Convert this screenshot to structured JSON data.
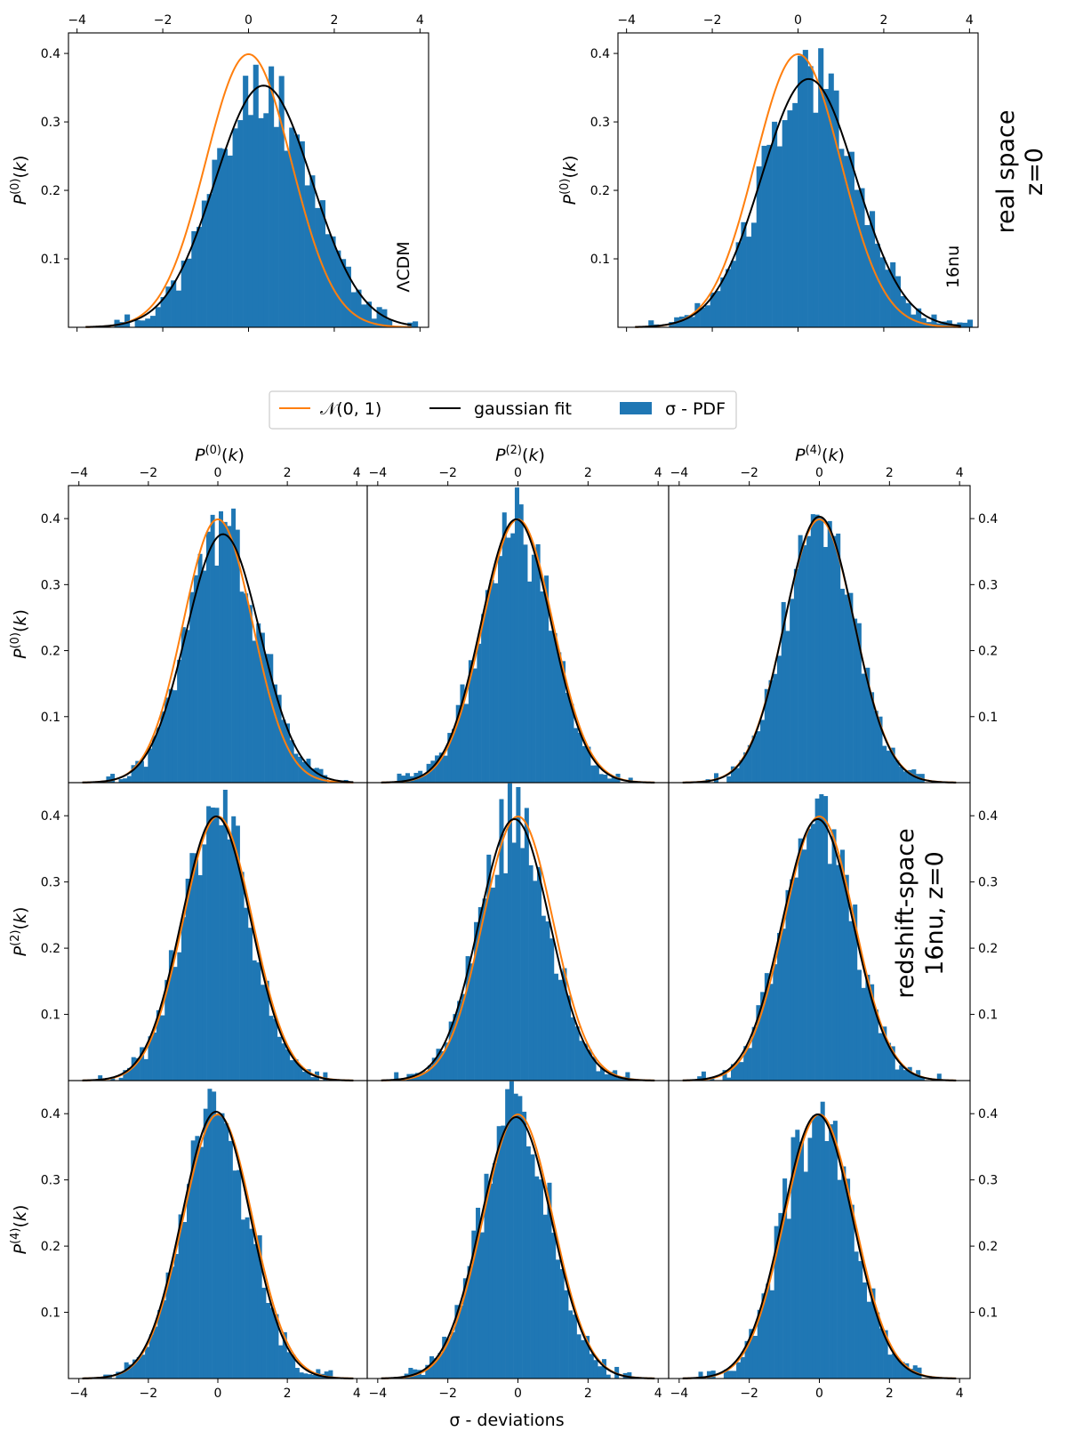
{
  "figure": {
    "legend": {
      "normal_label": "𝒩(0, 1)",
      "fit_label": "gaussian fit",
      "hist_label": "σ - PDF"
    },
    "top_row_side_label": [
      "real space",
      "z=0"
    ],
    "grid_side_label": [
      "redshift-space",
      "16nu, z=0"
    ],
    "grid_column_titles": [
      "P(0)(k)",
      "P(2)(k)",
      "P(4)(k)"
    ],
    "grid_row_titles": [
      "P(0)(k)",
      "P(2)(k)",
      "P(4)(k)"
    ],
    "x_axis_label": "σ - deviations",
    "x_ticks": [
      -4,
      -2,
      0,
      2,
      4
    ],
    "y_ticks": [
      0.1,
      0.2,
      0.3,
      0.4
    ]
  },
  "colors": {
    "normal": "#ff7f0e",
    "fit": "#000000",
    "hist": "#1f77b4"
  },
  "chart_data": [
    {
      "id": "top-lcdm",
      "type": "bar",
      "title": "",
      "annotation": "ΛCDM",
      "ylabel": "P(0)(k)",
      "xlim": [
        -4.2,
        4.2
      ],
      "ylim": [
        0,
        0.43
      ],
      "fit": {
        "mu": 0.35,
        "sigma": 1.13
      },
      "seed": 11,
      "series": [
        {
          "name": "σ - PDF"
        },
        {
          "name": "𝒩(0, 1)",
          "mu": 0,
          "sigma": 1
        },
        {
          "name": "gaussian fit",
          "mu": 0.35,
          "sigma": 1.13
        }
      ]
    },
    {
      "id": "top-16nu",
      "type": "bar",
      "title": "",
      "annotation": "16nu",
      "ylabel": "P(0)(k)",
      "xlim": [
        -4.2,
        4.2
      ],
      "ylim": [
        0,
        0.43
      ],
      "fit": {
        "mu": 0.25,
        "sigma": 1.1
      },
      "seed": 23,
      "series": [
        {
          "name": "σ - PDF"
        },
        {
          "name": "𝒩(0, 1)",
          "mu": 0,
          "sigma": 1
        },
        {
          "name": "gaussian fit",
          "mu": 0.25,
          "sigma": 1.1
        }
      ]
    },
    {
      "id": "grid-r0-c0",
      "type": "bar",
      "xlim": [
        -4.3,
        4.3
      ],
      "ylim": [
        0,
        0.45
      ],
      "fit": {
        "mu": 0.15,
        "sigma": 1.06
      },
      "seed": 31
    },
    {
      "id": "grid-r0-c1",
      "type": "bar",
      "xlim": [
        -4.3,
        4.3
      ],
      "ylim": [
        0,
        0.45
      ],
      "fit": {
        "mu": -0.05,
        "sigma": 1.0
      },
      "seed": 37
    },
    {
      "id": "grid-r0-c2",
      "type": "bar",
      "xlim": [
        -4.3,
        4.3
      ],
      "ylim": [
        0,
        0.45
      ],
      "fit": {
        "mu": 0.0,
        "sigma": 0.99
      },
      "seed": 41
    },
    {
      "id": "grid-r1-c0",
      "type": "bar",
      "xlim": [
        -4.3,
        4.3
      ],
      "ylim": [
        0,
        0.45
      ],
      "fit": {
        "mu": -0.05,
        "sigma": 1.0
      },
      "seed": 43
    },
    {
      "id": "grid-r1-c1",
      "type": "bar",
      "xlim": [
        -4.3,
        4.3
      ],
      "ylim": [
        0,
        0.45
      ],
      "fit": {
        "mu": -0.1,
        "sigma": 1.01
      },
      "seed": 47
    },
    {
      "id": "grid-r1-c2",
      "type": "bar",
      "xlim": [
        -4.3,
        4.3
      ],
      "ylim": [
        0,
        0.45
      ],
      "fit": {
        "mu": -0.05,
        "sigma": 1.01
      },
      "seed": 53
    },
    {
      "id": "grid-r2-c0",
      "type": "bar",
      "xlim": [
        -4.3,
        4.3
      ],
      "ylim": [
        0,
        0.45
      ],
      "fit": {
        "mu": -0.05,
        "sigma": 0.99
      },
      "seed": 59
    },
    {
      "id": "grid-r2-c1",
      "type": "bar",
      "xlim": [
        -4.3,
        4.3
      ],
      "ylim": [
        0,
        0.45
      ],
      "fit": {
        "mu": -0.05,
        "sigma": 1.01
      },
      "seed": 61
    },
    {
      "id": "grid-r2-c2",
      "type": "bar",
      "xlim": [
        -4.3,
        4.3
      ],
      "ylim": [
        0,
        0.45
      ],
      "fit": {
        "mu": -0.05,
        "sigma": 1.0
      },
      "seed": 67
    }
  ]
}
